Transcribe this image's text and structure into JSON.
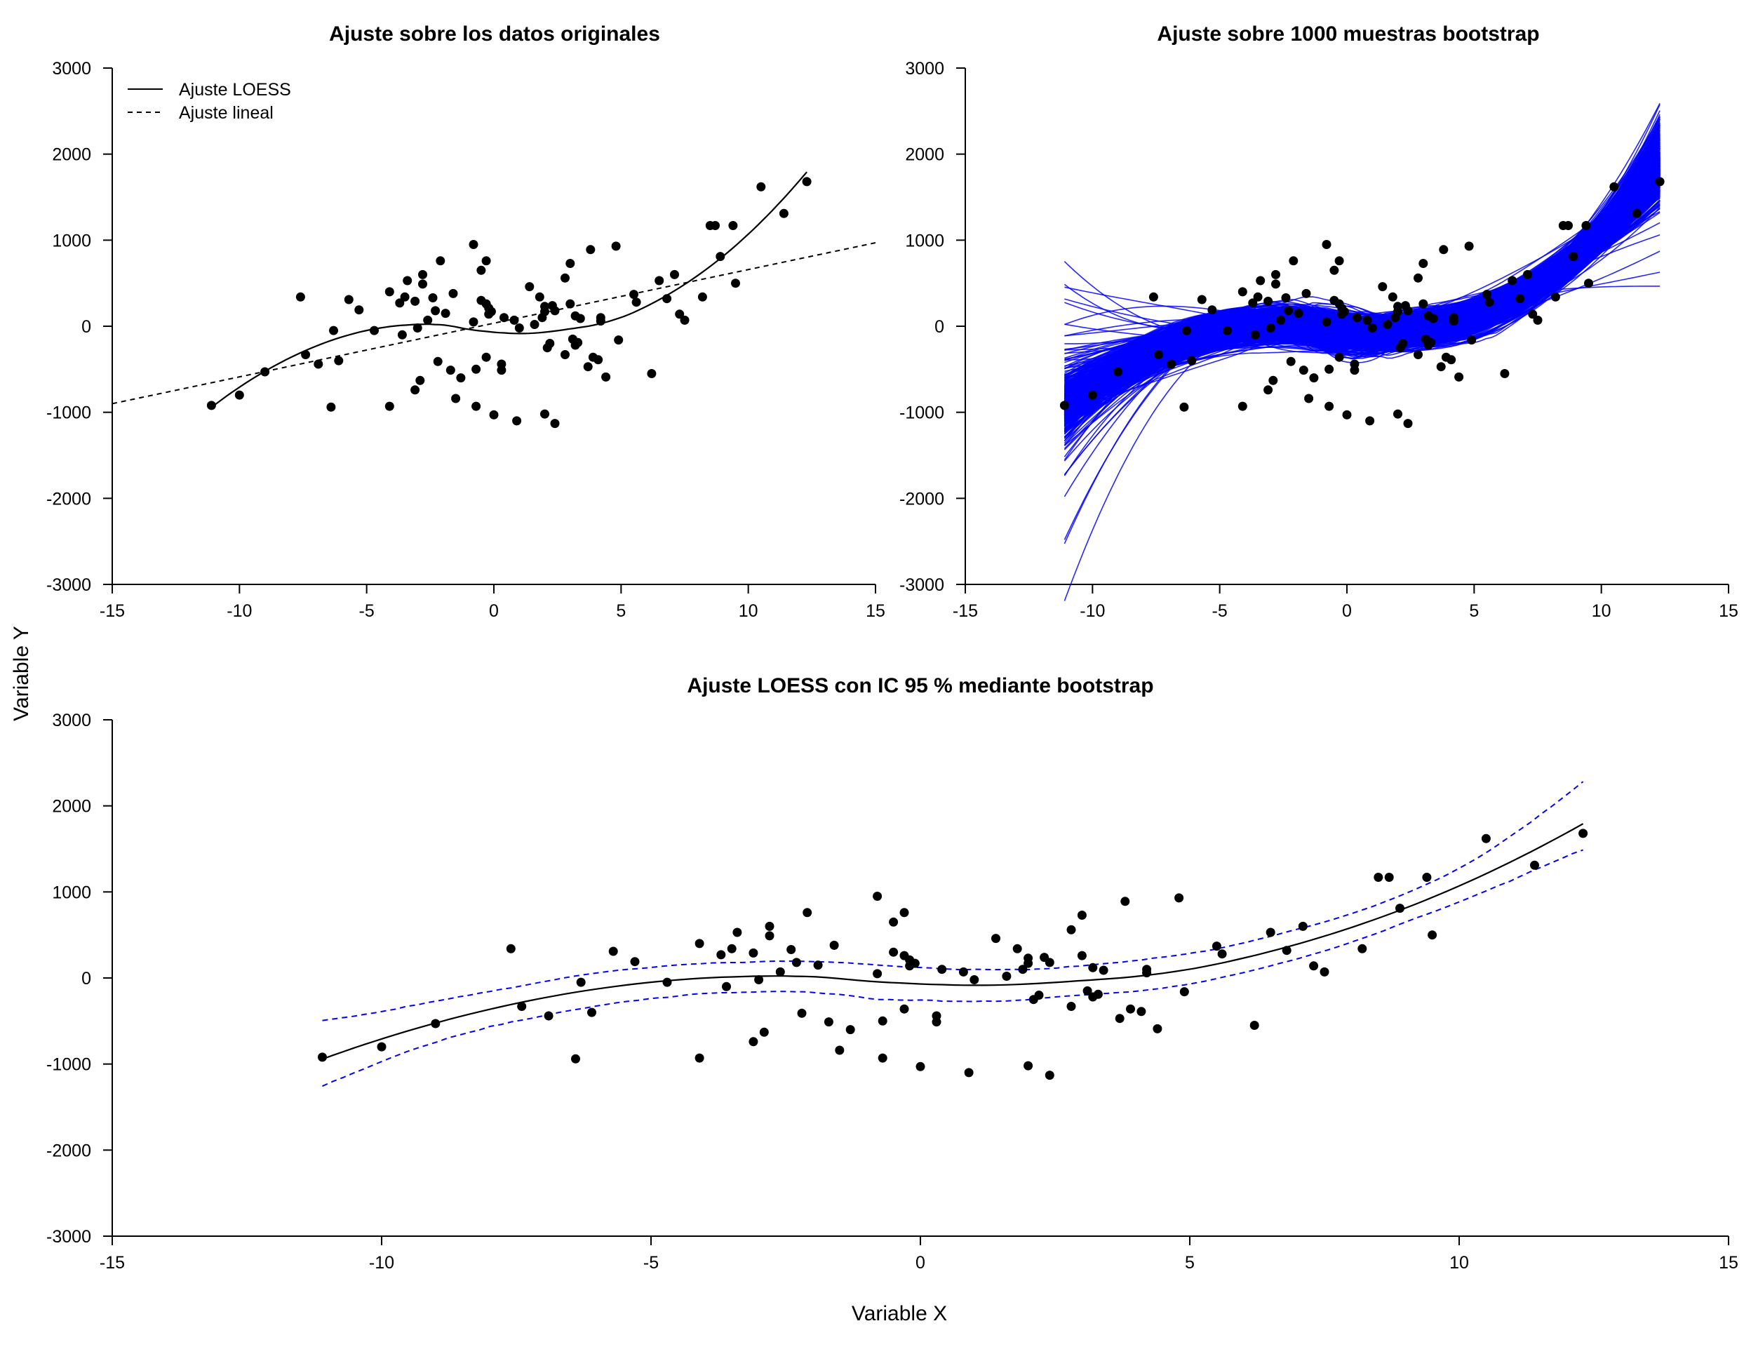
{
  "figure": {
    "xlabel": "Variable X",
    "ylabel": "Variable Y"
  },
  "colors": {
    "points": "#000000",
    "boot": "#0000ff",
    "fit": "#000000",
    "ci": "#0000ff"
  },
  "chart_data": [
    {
      "id": "original",
      "type": "scatter",
      "title": "Ajuste sobre los datos originales",
      "xlim": [
        -15,
        15
      ],
      "ylim": [
        -3000,
        3000
      ],
      "xticks": [
        -15,
        -10,
        -5,
        0,
        5,
        10,
        15
      ],
      "yticks": [
        -3000,
        -2000,
        -1000,
        0,
        1000,
        2000,
        3000
      ],
      "legend": {
        "position": "top-left",
        "entries": [
          "Ajuste LOESS",
          "Ajuste lineal"
        ]
      },
      "series": [
        {
          "name": "Ajuste LOESS",
          "kind": "line",
          "style": "solid"
        },
        {
          "name": "Ajuste lineal",
          "kind": "line",
          "style": "dashed",
          "endpoints": [
            [
              -15,
              -900
            ],
            [
              15,
              970
            ]
          ]
        }
      ]
    },
    {
      "id": "bootstrap",
      "type": "scatter",
      "title": "Ajuste sobre 1000 muestras bootstrap",
      "xlim": [
        -15,
        15
      ],
      "ylim": [
        -3000,
        3000
      ],
      "xticks": [
        -15,
        -10,
        -5,
        0,
        5,
        10,
        15
      ],
      "yticks": [
        -3000,
        -2000,
        -1000,
        0,
        1000,
        2000,
        3000
      ],
      "series": [
        {
          "name": "Curvas bootstrap",
          "kind": "line-band",
          "n_curves": 1000
        }
      ]
    },
    {
      "id": "ci",
      "type": "scatter",
      "title": "Ajuste LOESS con IC 95 % mediante bootstrap",
      "xlim": [
        -15,
        15
      ],
      "ylim": [
        -3000,
        3000
      ],
      "xticks": [
        -15,
        -10,
        -5,
        0,
        5,
        10,
        15
      ],
      "yticks": [
        -3000,
        -2000,
        -1000,
        0,
        1000,
        2000,
        3000
      ],
      "series": [
        {
          "name": "Ajuste LOESS",
          "kind": "line",
          "style": "solid"
        },
        {
          "name": "IC 95 % inferior",
          "kind": "line",
          "style": "dashed"
        },
        {
          "name": "IC 95 % superior",
          "kind": "line",
          "style": "dashed"
        }
      ]
    }
  ],
  "points": [
    [
      -11.1,
      -920
    ],
    [
      -10,
      -800
    ],
    [
      -9,
      -530
    ],
    [
      -7.6,
      340
    ],
    [
      -7.4,
      -330
    ],
    [
      -6.9,
      -440
    ],
    [
      -6.4,
      -940
    ],
    [
      -6.3,
      -50
    ],
    [
      -6.1,
      -400
    ],
    [
      -5.7,
      310
    ],
    [
      -5.3,
      190
    ],
    [
      -4.7,
      -50
    ],
    [
      -4.1,
      400
    ],
    [
      -4.1,
      -930
    ],
    [
      -3.7,
      270
    ],
    [
      -3.6,
      -100
    ],
    [
      -3.5,
      340
    ],
    [
      -3.4,
      530
    ],
    [
      -3.1,
      -740
    ],
    [
      -3.1,
      290
    ],
    [
      -3,
      -20
    ],
    [
      -2.9,
      -630
    ],
    [
      -2.8,
      490
    ],
    [
      -2.8,
      600
    ],
    [
      -2.6,
      70
    ],
    [
      -2.4,
      330
    ],
    [
      -2.3,
      180
    ],
    [
      -2.2,
      -410
    ],
    [
      -2.1,
      760
    ],
    [
      -1.9,
      150
    ],
    [
      -1.7,
      -510
    ],
    [
      -1.6,
      380
    ],
    [
      -1.5,
      -840
    ],
    [
      -1.3,
      -600
    ],
    [
      -0.8,
      950
    ],
    [
      -0.8,
      50
    ],
    [
      -0.7,
      -500
    ],
    [
      -0.7,
      -930
    ],
    [
      -0.5,
      650
    ],
    [
      -0.5,
      300
    ],
    [
      -0.3,
      -360
    ],
    [
      -0.3,
      760
    ],
    [
      -0.3,
      260
    ],
    [
      -0.2,
      210
    ],
    [
      -0.2,
      140
    ],
    [
      -0.1,
      170
    ],
    [
      0,
      -1030
    ],
    [
      0.3,
      -440
    ],
    [
      0.3,
      -510
    ],
    [
      0.4,
      100
    ],
    [
      0.8,
      70
    ],
    [
      0.9,
      -1100
    ],
    [
      1,
      -20
    ],
    [
      1.4,
      460
    ],
    [
      1.6,
      20
    ],
    [
      1.8,
      340
    ],
    [
      1.9,
      100
    ],
    [
      2,
      -1020
    ],
    [
      2,
      170
    ],
    [
      2,
      230
    ],
    [
      2.1,
      -250
    ],
    [
      2.2,
      -200
    ],
    [
      2.3,
      240
    ],
    [
      2.4,
      -1130
    ],
    [
      2.4,
      180
    ],
    [
      2.8,
      -330
    ],
    [
      2.8,
      560
    ],
    [
      3,
      260
    ],
    [
      3,
      730
    ],
    [
      3.1,
      -150
    ],
    [
      3.2,
      120
    ],
    [
      3.2,
      -220
    ],
    [
      3.3,
      -190
    ],
    [
      3.4,
      90
    ],
    [
      3.7,
      -470
    ],
    [
      3.8,
      890
    ],
    [
      3.9,
      -360
    ],
    [
      4.1,
      -390
    ],
    [
      4.2,
      100
    ],
    [
      4.2,
      60
    ],
    [
      4.4,
      -590
    ],
    [
      4.8,
      930
    ],
    [
      4.9,
      -160
    ],
    [
      5.5,
      370
    ],
    [
      5.6,
      280
    ],
    [
      6.2,
      -550
    ],
    [
      6.5,
      530
    ],
    [
      6.8,
      320
    ],
    [
      7.1,
      600
    ],
    [
      7.3,
      140
    ],
    [
      7.5,
      70
    ],
    [
      8.2,
      340
    ],
    [
      8.5,
      1170
    ],
    [
      8.7,
      1170
    ],
    [
      8.9,
      810
    ],
    [
      9.4,
      1170
    ],
    [
      9.5,
      500
    ],
    [
      10.5,
      1620
    ],
    [
      11.4,
      1310
    ],
    [
      12.3,
      1680
    ]
  ]
}
